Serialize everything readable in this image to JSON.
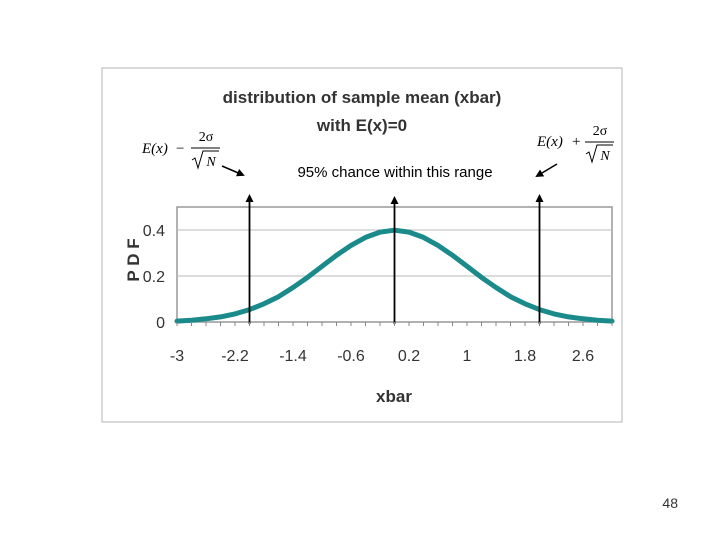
{
  "chart_data": {
    "type": "line",
    "title_line1": "distribution of sample mean (xbar)",
    "title_line2": "with E(x)=0",
    "xlabel": "xbar",
    "ylabel": "P D F",
    "x_ticks": [
      "-3",
      "-2.2",
      "-1.4",
      "-0.6",
      "0.2",
      "1",
      "1.8",
      "2.6"
    ],
    "x_tick_values": [
      -3,
      -2.2,
      -1.4,
      -0.6,
      0.2,
      1,
      1.8,
      2.6
    ],
    "y_ticks": [
      "0",
      "0.2",
      "0.4"
    ],
    "y_tick_values": [
      0,
      0.2,
      0.4
    ],
    "xlim": [
      -3,
      3
    ],
    "ylim": [
      0,
      0.5
    ],
    "grid": "horizontal",
    "series": [
      {
        "color": "#1a8a8a",
        "x": [
          -3.0,
          -2.8,
          -2.6,
          -2.4,
          -2.2,
          -2.0,
          -1.8,
          -1.6,
          -1.4,
          -1.2,
          -1.0,
          -0.8,
          -0.6,
          -0.4,
          -0.2,
          0.0,
          0.2,
          0.4,
          0.6,
          0.8,
          1.0,
          1.2,
          1.4,
          1.6,
          1.8,
          2.0,
          2.2,
          2.4,
          2.6,
          2.8,
          3.0
        ],
        "y": [
          0.004,
          0.008,
          0.014,
          0.022,
          0.035,
          0.054,
          0.079,
          0.11,
          0.15,
          0.194,
          0.242,
          0.29,
          0.333,
          0.368,
          0.391,
          0.399,
          0.391,
          0.368,
          0.333,
          0.29,
          0.242,
          0.194,
          0.15,
          0.11,
          0.079,
          0.054,
          0.035,
          0.022,
          0.014,
          0.008,
          0.004
        ]
      }
    ],
    "markers": [
      {
        "name": "lower-bound",
        "x": -2
      },
      {
        "name": "mean",
        "x": 0
      },
      {
        "name": "upper-bound",
        "x": 2
      }
    ]
  },
  "annotations": {
    "range_text": "95% chance within this range",
    "left_formula": {
      "lhs": "E(x)",
      "op": "−",
      "num": "2σ",
      "den": "N"
    },
    "right_formula": {
      "lhs": "E(x)",
      "op": "+",
      "num": "2σ",
      "den": "N"
    }
  },
  "slide_number": "48",
  "colors": {
    "curve": "#1a8a8a",
    "plot_border": "#999999",
    "grid": "#bbbbbb"
  }
}
